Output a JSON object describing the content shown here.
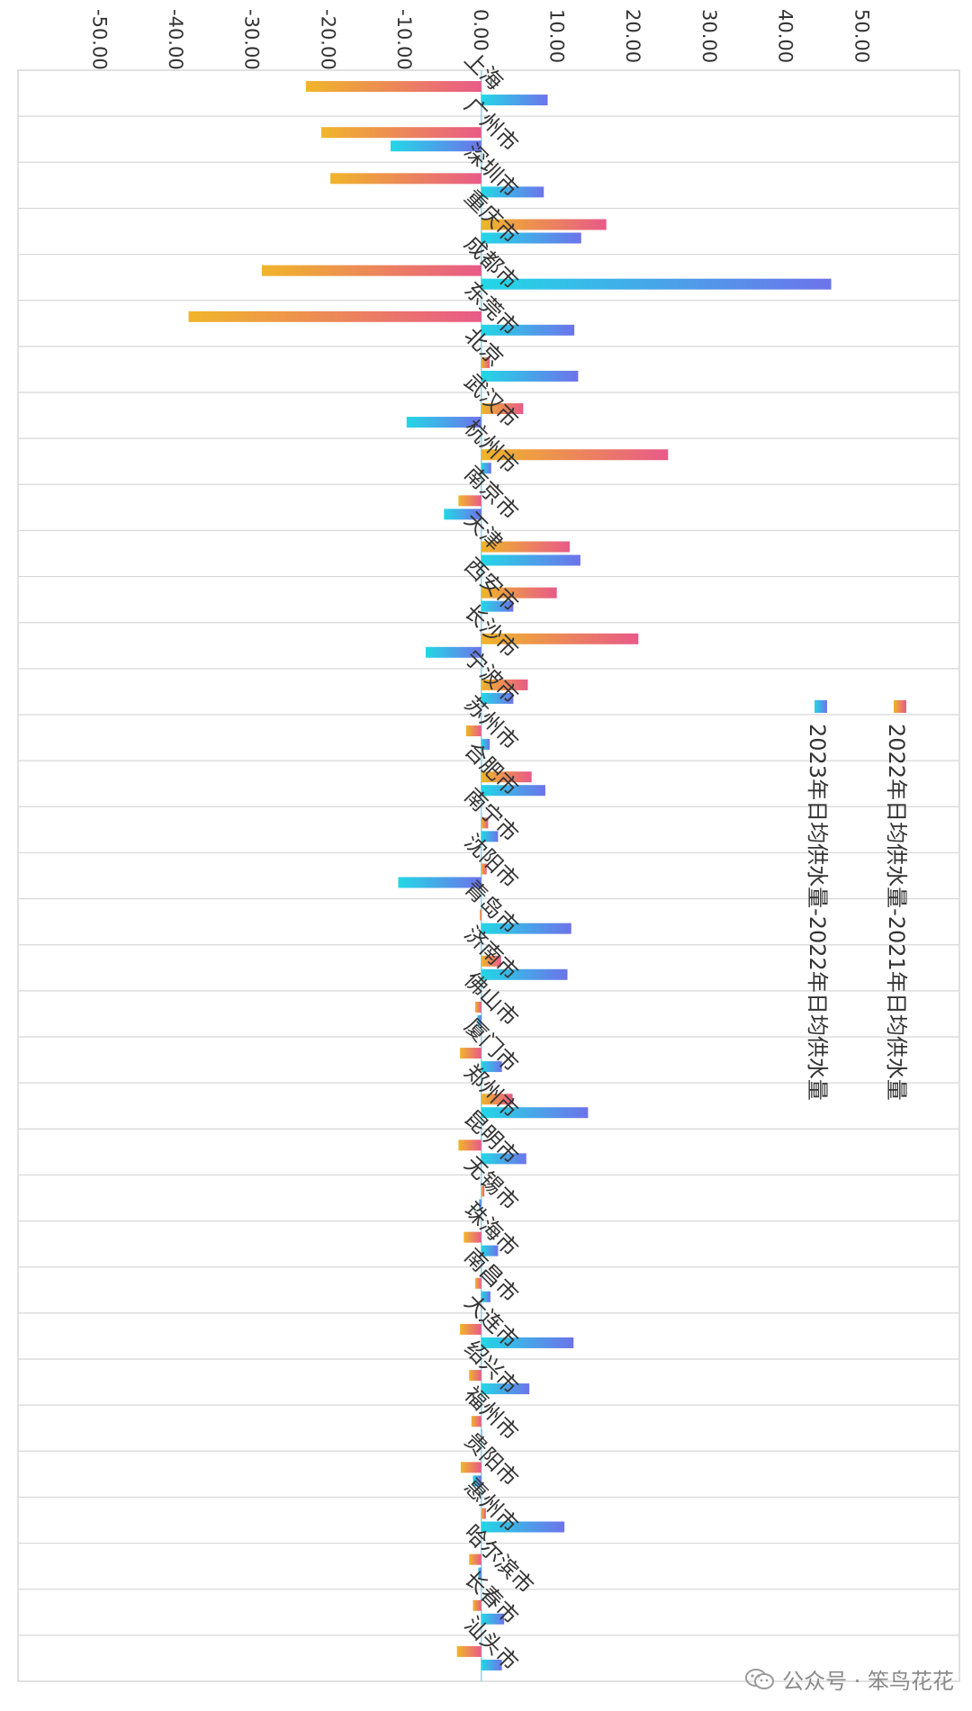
{
  "colors": {
    "series1_start": "#f0b52a",
    "series1_end": "#e85a88",
    "series2_start": "#22d7e6",
    "series2_end": "#6d73ea",
    "grid": "#d7d7d7",
    "axis_text": "#333333",
    "zero_line": "#8fd4d8"
  },
  "watermark": {
    "icon": "wechat-icon",
    "text": "公众号 · 笨鸟花花"
  },
  "chart_data": {
    "type": "bar",
    "orientation": "rotated-90-clockwise-horizontal-bar",
    "title": "",
    "xlim": [
      -50,
      50
    ],
    "x_ticks": [
      "-50.00",
      "-40.00",
      "-30.00",
      "-20.00",
      "-10.00",
      "0.00",
      "10.00",
      "20.00",
      "30.00",
      "40.00",
      "50.00"
    ],
    "legend_position": "right-middle",
    "categories": [
      "上海",
      "广州市",
      "深圳市",
      "重庆市",
      "成都市",
      "东莞市",
      "北京",
      "武汉市",
      "杭州市",
      "南京市",
      "天津",
      "西安市",
      "长沙市",
      "宁波市",
      "苏州市",
      "合肥市",
      "南宁市",
      "沈阳市",
      "青岛市",
      "济南市",
      "佛山市",
      "厦门市",
      "郑州市",
      "昆明市",
      "无锡市",
      "珠海市",
      "南昌市",
      "大连市",
      "绍兴市",
      "福州市",
      "贵阳市",
      "惠州市",
      "哈尔滨市",
      "长春市",
      "汕头市"
    ],
    "series": [
      {
        "name": "2022年日均供水量-2021年日均供水量",
        "values": [
          -23.0,
          -21.0,
          -19.8,
          16.4,
          -28.8,
          -38.4,
          1.1,
          5.5,
          24.5,
          -3.0,
          11.6,
          9.9,
          20.6,
          6.1,
          -2.0,
          6.6,
          0.9,
          0.7,
          -0.2,
          2.6,
          -0.8,
          -2.8,
          4.1,
          -3.0,
          0.4,
          -2.3,
          -0.8,
          -2.8,
          -1.6,
          -1.3,
          -2.7,
          0.6,
          -1.6,
          -1.1,
          -3.2
        ]
      },
      {
        "name": "2023年日均供水量-2022年日均供水量",
        "values": [
          8.7,
          -11.9,
          8.2,
          13.1,
          45.9,
          12.2,
          12.7,
          -9.8,
          1.3,
          -4.9,
          13.0,
          4.2,
          -7.3,
          4.2,
          1.1,
          8.4,
          2.2,
          -10.9,
          11.8,
          11.3,
          -0.5,
          2.7,
          14.0,
          5.9,
          -0.3,
          2.2,
          1.2,
          12.1,
          6.3,
          0.1,
          -1.1,
          10.9,
          -0.4,
          3.0,
          2.7
        ]
      }
    ]
  }
}
